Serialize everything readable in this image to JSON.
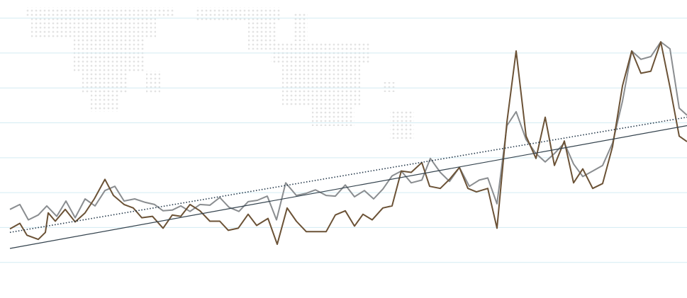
{
  "chart_data": {
    "type": "line",
    "xlim": [
      0,
      969
    ],
    "ylim": [
      -51,
      376
    ],
    "yticks": [
      0,
      50,
      100,
      150,
      200,
      250,
      300,
      350
    ],
    "grid": true,
    "grid_color": "#d3ecf3",
    "series": [
      {
        "color": "#8a8d90",
        "x": [
          14,
          28,
          40,
          54,
          66,
          80,
          93,
          106,
          120,
          134,
          148,
          162,
          175,
          190,
          205,
          218,
          230,
          243,
          255,
          268,
          282,
          296,
          310,
          323,
          337,
          350,
          363,
          377,
          390,
          403,
          418,
          432,
          445,
          460,
          473,
          487,
          500,
          514,
          527,
          540,
          553,
          566,
          580,
          595,
          607,
          621,
          634,
          648,
          662,
          676,
          688,
          701,
          715,
          728,
          742,
          756,
          769,
          782,
          796,
          809,
          822,
          836,
          850,
          864,
          878,
          891,
          904,
          918,
          932,
          945,
          958,
          969
        ],
        "values": [
          76,
          83,
          61,
          68,
          81,
          66,
          88,
          64,
          91,
          81,
          103,
          109,
          88,
          91,
          86,
          83,
          74,
          75,
          81,
          73,
          83,
          82,
          93,
          79,
          73,
          87,
          89,
          95,
          61,
          114,
          96,
          99,
          104,
          96,
          95,
          111,
          94,
          103,
          91,
          105,
          124,
          131,
          114,
          118,
          149,
          129,
          116,
          136,
          109,
          118,
          121,
          84,
          196,
          216,
          176,
          156,
          144,
          156,
          171,
          141,
          123,
          131,
          139,
          171,
          231,
          303,
          291,
          295,
          316,
          306,
          221,
          211
        ]
      },
      {
        "color": "#6b5236",
        "x": [
          14,
          28,
          38,
          54,
          64,
          68,
          78,
          92,
          106,
          120,
          133,
          148,
          160,
          175,
          188,
          200,
          215,
          230,
          243,
          255,
          268,
          282,
          296,
          310,
          322,
          336,
          350,
          362,
          378,
          391,
          405,
          418,
          432,
          445,
          460,
          473,
          487,
          500,
          512,
          525,
          540,
          553,
          566,
          580,
          595,
          606,
          621,
          634,
          648,
          660,
          672,
          688,
          701,
          715,
          728,
          742,
          756,
          769,
          782,
          796,
          809,
          822,
          836,
          850,
          864,
          878,
          891,
          904,
          918,
          932,
          945,
          958,
          969
        ],
        "values": [
          48,
          56,
          39,
          33,
          43,
          71,
          59,
          76,
          58,
          71,
          91,
          119,
          96,
          83,
          78,
          64,
          66,
          49,
          68,
          66,
          83,
          74,
          59,
          59,
          46,
          49,
          69,
          53,
          63,
          26,
          78,
          59,
          44,
          44,
          44,
          68,
          74,
          52,
          69,
          61,
          78,
          81,
          131,
          129,
          143,
          109,
          106,
          119,
          136,
          106,
          101,
          106,
          49,
          201,
          303,
          181,
          149,
          208,
          139,
          174,
          114,
          134,
          106,
          113,
          166,
          253,
          303,
          271,
          274,
          316,
          251,
          181,
          173
        ]
      },
      {
        "color": "#24384a",
        "style": "dotted",
        "x": [
          14,
          969
        ],
        "values": [
          43,
          208
        ]
      },
      {
        "color": "#33424d",
        "style": "solid",
        "x": [
          14,
          969
        ],
        "values": [
          20,
          196
        ]
      }
    ]
  }
}
